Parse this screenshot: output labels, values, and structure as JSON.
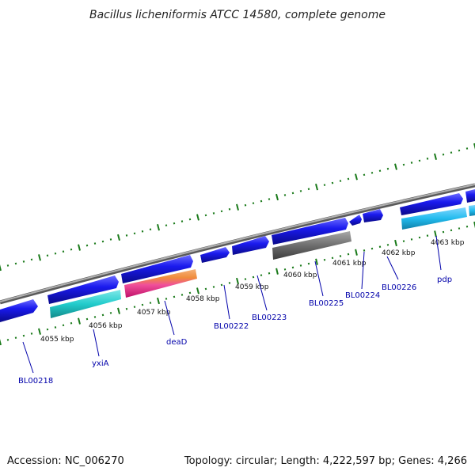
{
  "title": "Bacillus licheniformis ATCC 14580, complete genome",
  "footer": {
    "accession": "Accession: NC_006270",
    "summary": "Topology: circular; Length: 4,222,597 bp; Genes: 4,266"
  },
  "kbp_labels": [
    "4055 kbp",
    "4056 kbp",
    "4057 kbp",
    "4058 kbp",
    "4059 kbp",
    "4060 kbp",
    "4061 kbp",
    "4062 kbp",
    "4063 kbp"
  ],
  "gene_labels": [
    "BL00218",
    "yxiA",
    "deaD",
    "BL00222",
    "BL00223",
    "BL00225",
    "BL00224",
    "BL00226",
    "pdp"
  ],
  "colors": {
    "backbone": "#8c8c8c",
    "gene_blue": "#1a1aee",
    "cyan": "#22cccc",
    "light_blue": "#22bbee",
    "gray_block": "#6e6e6e",
    "orange_band": "#f08c3c",
    "magenta_band": "#e0207a",
    "ticks": "#1a7a1a",
    "label_blue": "#0000aa"
  }
}
